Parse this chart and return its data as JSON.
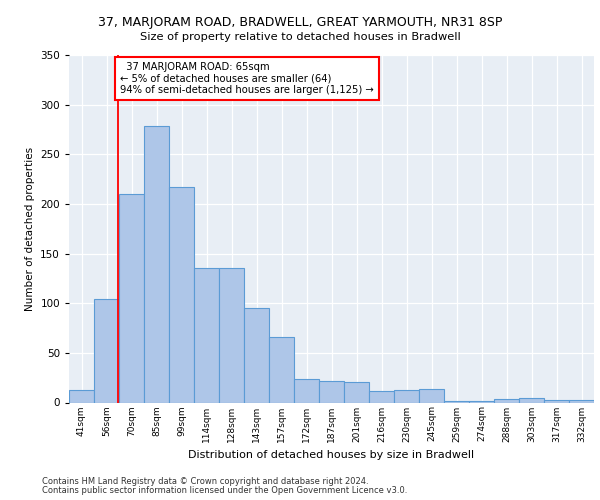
{
  "title_line1": "37, MARJORAM ROAD, BRADWELL, GREAT YARMOUTH, NR31 8SP",
  "title_line2": "Size of property relative to detached houses in Bradwell",
  "xlabel": "Distribution of detached houses by size in Bradwell",
  "ylabel": "Number of detached properties",
  "footer_line1": "Contains HM Land Registry data © Crown copyright and database right 2024.",
  "footer_line2": "Contains public sector information licensed under the Open Government Licence v3.0.",
  "categories": [
    "41sqm",
    "56sqm",
    "70sqm",
    "85sqm",
    "99sqm",
    "114sqm",
    "128sqm",
    "143sqm",
    "157sqm",
    "172sqm",
    "187sqm",
    "201sqm",
    "216sqm",
    "230sqm",
    "245sqm",
    "259sqm",
    "274sqm",
    "288sqm",
    "303sqm",
    "317sqm",
    "332sqm"
  ],
  "values": [
    13,
    104,
    210,
    278,
    217,
    135,
    135,
    95,
    66,
    24,
    22,
    21,
    12,
    13,
    14,
    2,
    2,
    4,
    5,
    3,
    3
  ],
  "bar_color": "#aec6e8",
  "bar_edge_color": "#5b9bd5",
  "ylim": [
    0,
    350
  ],
  "yticks": [
    0,
    50,
    100,
    150,
    200,
    250,
    300,
    350
  ],
  "annotation_text": "  37 MARJORAM ROAD: 65sqm\n← 5% of detached houses are smaller (64)\n94% of semi-detached houses are larger (1,125) →",
  "vline_x": 1.45,
  "plot_bg_color": "#e8eef5"
}
